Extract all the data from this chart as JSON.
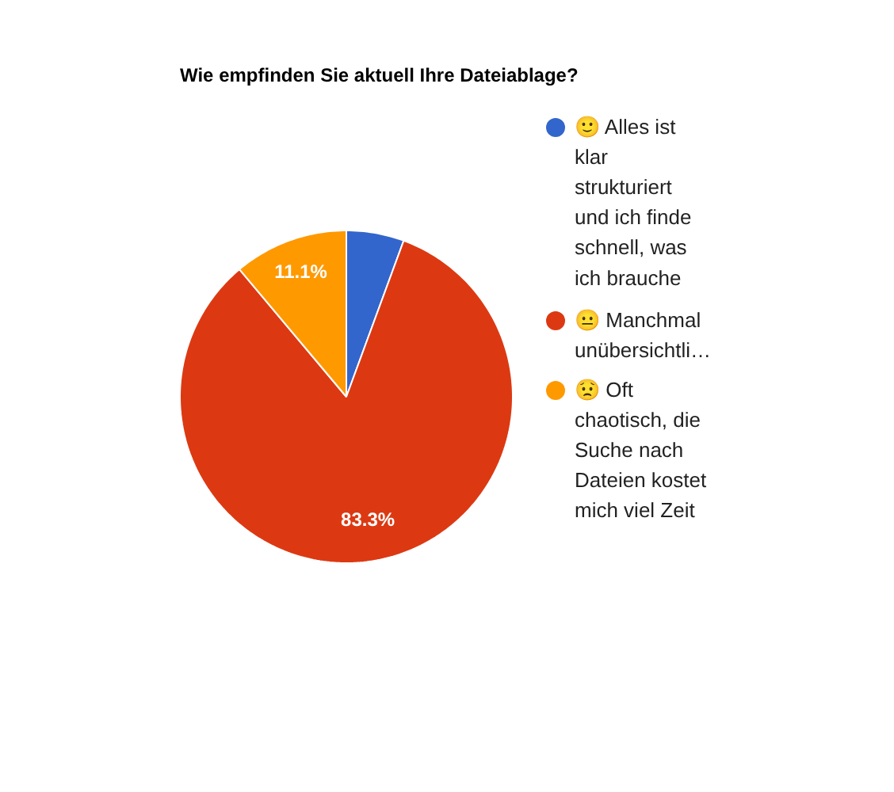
{
  "chart_data": {
    "type": "pie",
    "title": "Wie empfinden Sie aktuell Ihre Dateiablage?",
    "categories": [
      "🙂 Alles ist klar strukturiert und ich finde schnell, was ich brauche",
      "😐 Manchmal unübersichtli…",
      "😟 Oft chaotisch, die Suche nach Dateien kostet mich viel Zeit"
    ],
    "values": [
      5.6,
      83.3,
      11.1
    ],
    "colors": [
      "#3366cc",
      "#dc3912",
      "#ff9900"
    ],
    "value_labels": [
      null,
      "83.3%",
      "11.1%"
    ],
    "legend": "right"
  }
}
